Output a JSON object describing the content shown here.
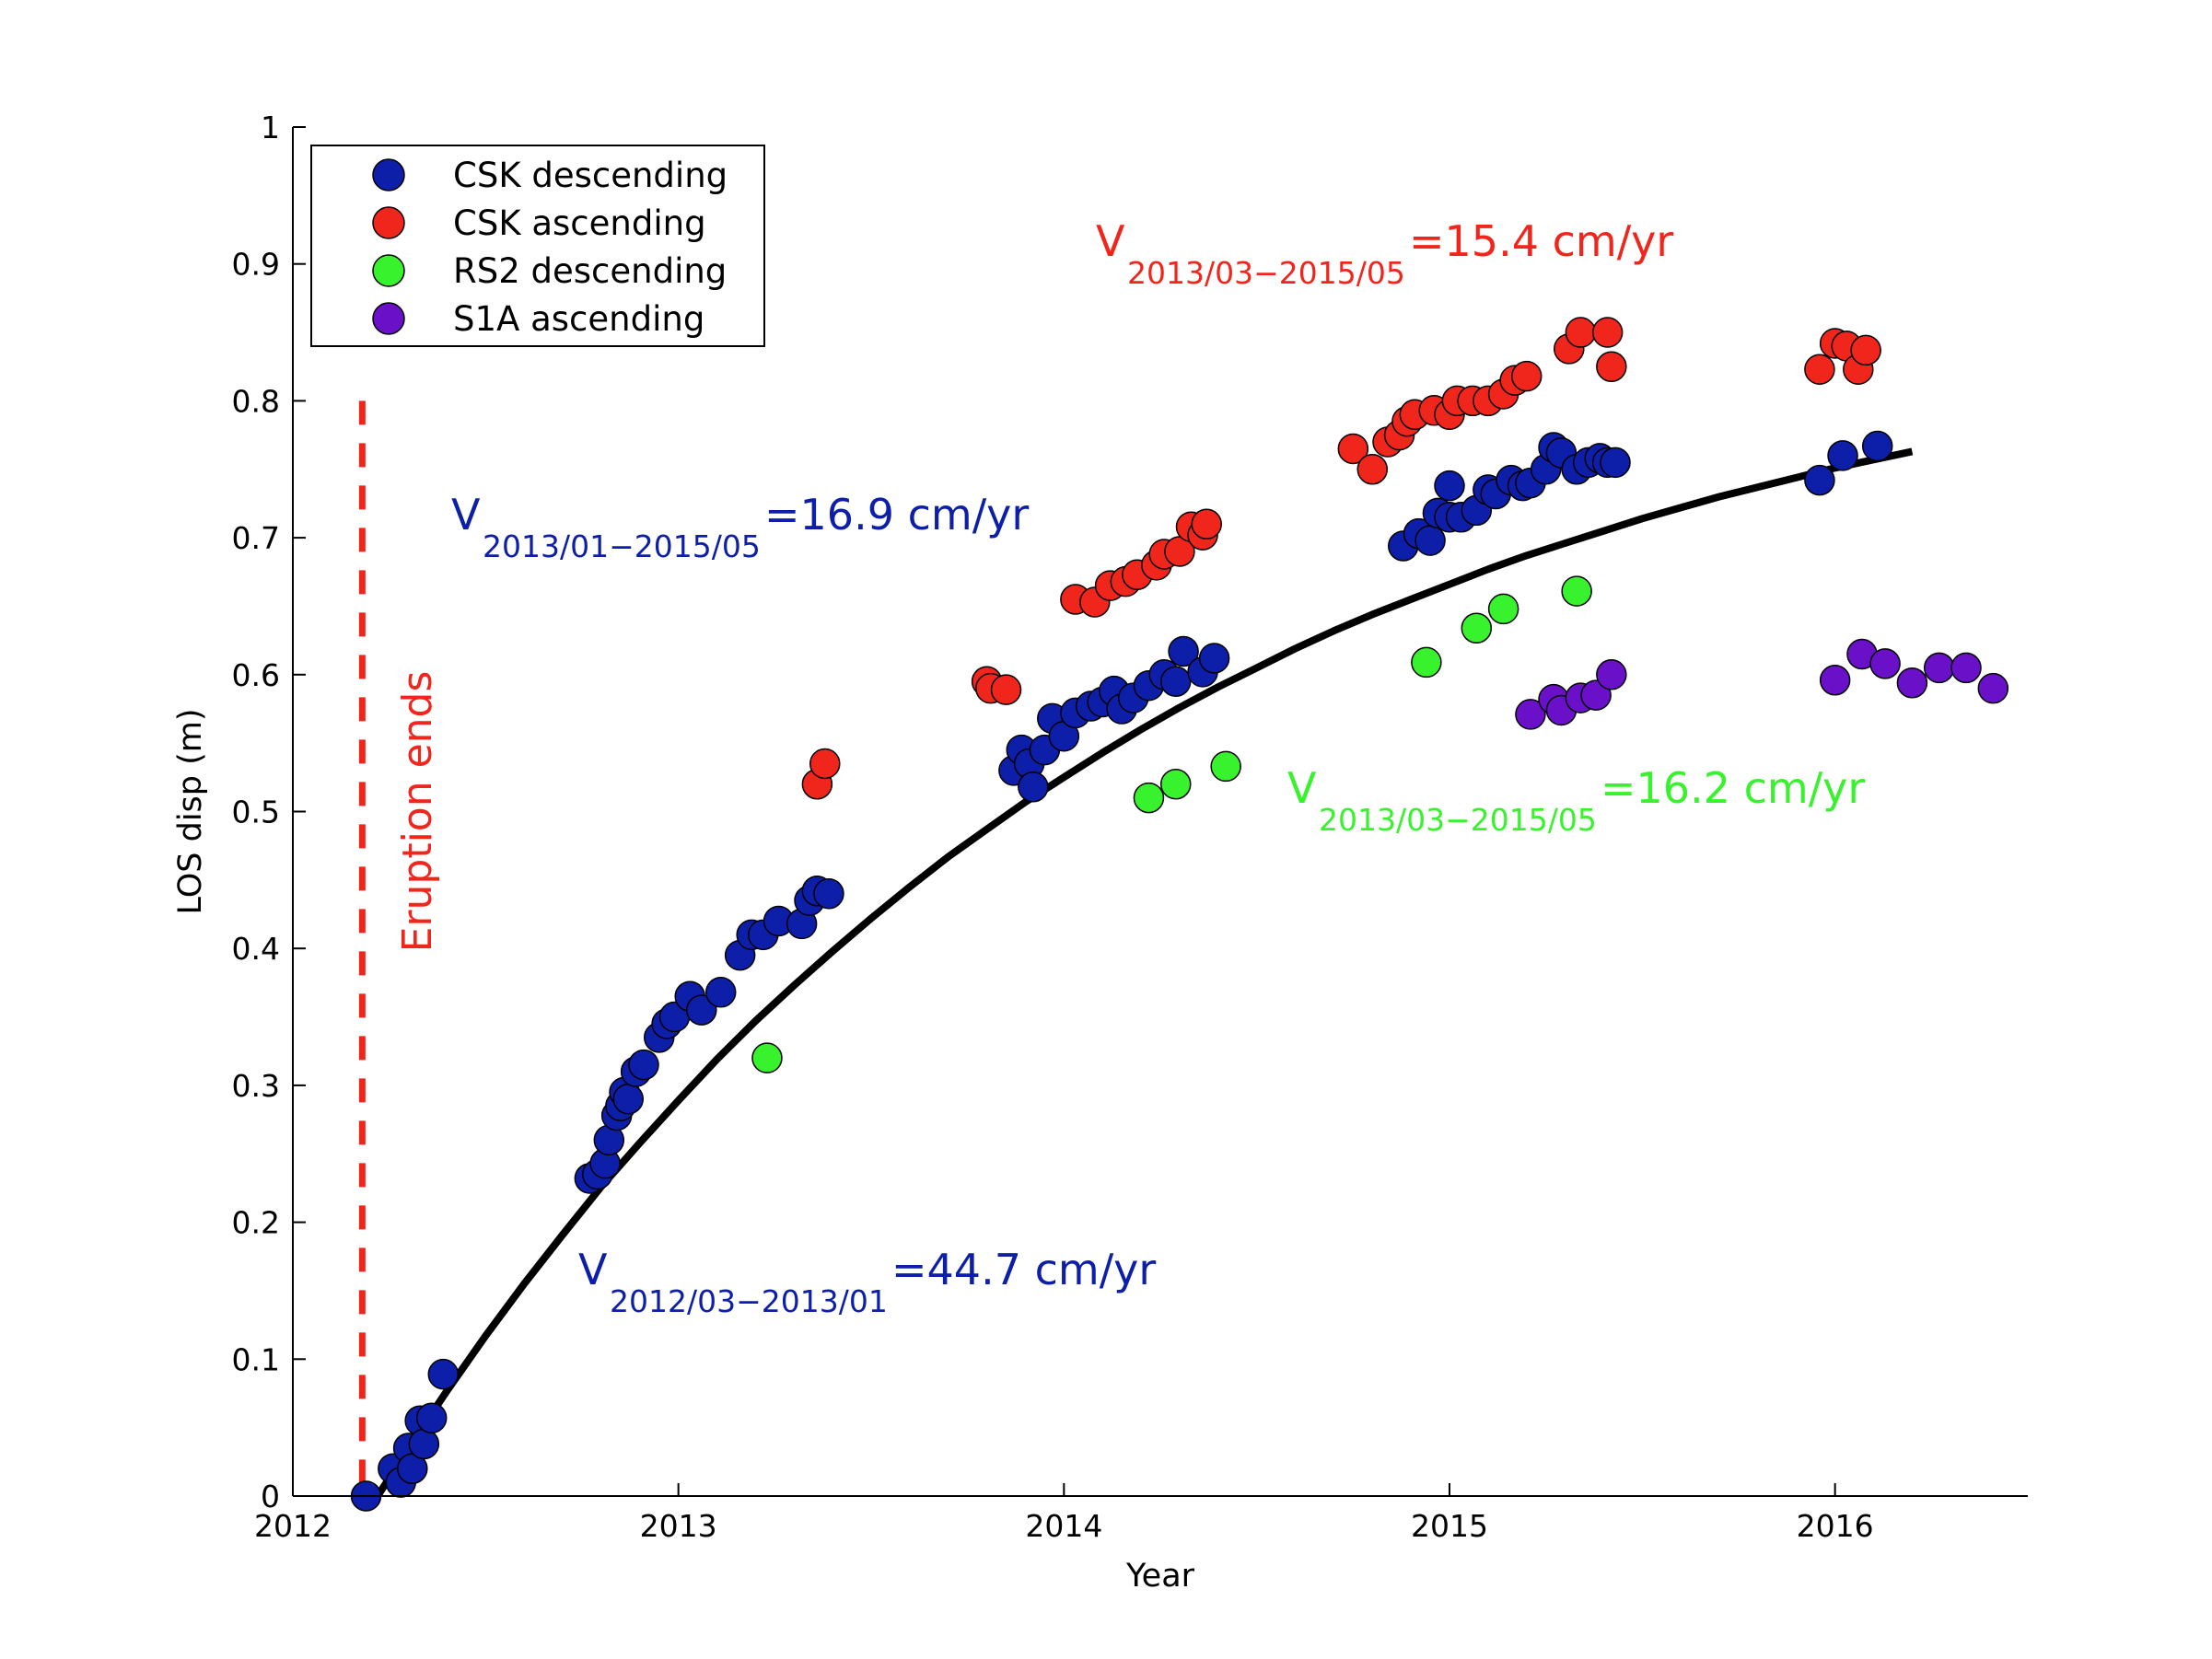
{
  "chart_data": {
    "type": "scatter",
    "xlabel": "Year",
    "ylabel": "LOS disp (m)",
    "xlim": [
      2012,
      2016.5
    ],
    "ylim": [
      0,
      1
    ],
    "xticks": [
      2012,
      2013,
      2014,
      2015,
      2016
    ],
    "xtick_labels": [
      "2012",
      "2013",
      "2014",
      "2015",
      "2016"
    ],
    "yticks": [
      0,
      0.1,
      0.2,
      0.3,
      0.4,
      0.5,
      0.6,
      0.7,
      0.8,
      0.9,
      1
    ],
    "ytick_labels": [
      "0",
      "0.1",
      "0.2",
      "0.3",
      "0.4",
      "0.5",
      "0.6",
      "0.7",
      "0.8",
      "0.9",
      "1"
    ],
    "grid": false,
    "legend_position": "top-left",
    "series": [
      {
        "name": "CSK descending",
        "color": "#0d1fa8",
        "points": [
          [
            2012.19,
            0.0
          ],
          [
            2012.26,
            0.02
          ],
          [
            2012.28,
            0.01
          ],
          [
            2012.3,
            0.035
          ],
          [
            2012.31,
            0.02
          ],
          [
            2012.33,
            0.055
          ],
          [
            2012.34,
            0.038
          ],
          [
            2012.36,
            0.057
          ],
          [
            2012.39,
            0.089
          ],
          [
            2012.77,
            0.232
          ],
          [
            2012.79,
            0.235
          ],
          [
            2012.81,
            0.243
          ],
          [
            2012.82,
            0.26
          ],
          [
            2012.84,
            0.278
          ],
          [
            2012.85,
            0.285
          ],
          [
            2012.86,
            0.295
          ],
          [
            2012.87,
            0.29
          ],
          [
            2012.89,
            0.31
          ],
          [
            2012.91,
            0.315
          ],
          [
            2012.95,
            0.335
          ],
          [
            2012.97,
            0.345
          ],
          [
            2012.99,
            0.35
          ],
          [
            2013.03,
            0.365
          ],
          [
            2013.06,
            0.355
          ],
          [
            2013.11,
            0.368
          ],
          [
            2013.16,
            0.395
          ],
          [
            2013.19,
            0.41
          ],
          [
            2013.22,
            0.41
          ],
          [
            2013.26,
            0.42
          ],
          [
            2013.32,
            0.418
          ],
          [
            2013.34,
            0.435
          ],
          [
            2013.36,
            0.442
          ],
          [
            2013.39,
            0.44
          ],
          [
            2013.87,
            0.53
          ],
          [
            2013.89,
            0.545
          ],
          [
            2013.91,
            0.535
          ],
          [
            2013.92,
            0.518
          ],
          [
            2013.95,
            0.545
          ],
          [
            2013.97,
            0.568
          ],
          [
            2014.0,
            0.555
          ],
          [
            2014.03,
            0.572
          ],
          [
            2014.07,
            0.577
          ],
          [
            2014.1,
            0.58
          ],
          [
            2014.13,
            0.588
          ],
          [
            2014.15,
            0.575
          ],
          [
            2014.18,
            0.583
          ],
          [
            2014.22,
            0.592
          ],
          [
            2014.26,
            0.6
          ],
          [
            2014.29,
            0.595
          ],
          [
            2014.31,
            0.617
          ],
          [
            2014.36,
            0.602
          ],
          [
            2014.39,
            0.612
          ],
          [
            2014.88,
            0.694
          ],
          [
            2014.92,
            0.703
          ],
          [
            2014.95,
            0.698
          ],
          [
            2014.97,
            0.718
          ],
          [
            2015.0,
            0.715
          ],
          [
            2015.0,
            0.738
          ],
          [
            2015.03,
            0.715
          ],
          [
            2015.07,
            0.72
          ],
          [
            2015.1,
            0.735
          ],
          [
            2015.12,
            0.732
          ],
          [
            2015.16,
            0.742
          ],
          [
            2015.19,
            0.738
          ],
          [
            2015.21,
            0.74
          ],
          [
            2015.25,
            0.75
          ],
          [
            2015.27,
            0.766
          ],
          [
            2015.29,
            0.762
          ],
          [
            2015.33,
            0.75
          ],
          [
            2015.36,
            0.755
          ],
          [
            2015.39,
            0.758
          ],
          [
            2015.41,
            0.755
          ],
          [
            2015.43,
            0.755
          ],
          [
            2015.96,
            0.742
          ],
          [
            2016.02,
            0.76
          ],
          [
            2016.11,
            0.767
          ]
        ]
      },
      {
        "name": "CSK ascending",
        "color": "#f0251c",
        "points": [
          [
            2013.36,
            0.52
          ],
          [
            2013.38,
            0.535
          ],
          [
            2013.8,
            0.595
          ],
          [
            2013.81,
            0.59
          ],
          [
            2013.85,
            0.589
          ],
          [
            2014.03,
            0.655
          ],
          [
            2014.08,
            0.653
          ],
          [
            2014.12,
            0.665
          ],
          [
            2014.16,
            0.668
          ],
          [
            2014.19,
            0.673
          ],
          [
            2014.24,
            0.68
          ],
          [
            2014.26,
            0.688
          ],
          [
            2014.3,
            0.69
          ],
          [
            2014.33,
            0.708
          ],
          [
            2014.36,
            0.702
          ],
          [
            2014.37,
            0.71
          ],
          [
            2014.75,
            0.765
          ],
          [
            2014.8,
            0.75
          ],
          [
            2014.84,
            0.77
          ],
          [
            2014.87,
            0.775
          ],
          [
            2014.89,
            0.785
          ],
          [
            2014.91,
            0.79
          ],
          [
            2014.96,
            0.793
          ],
          [
            2015.0,
            0.79
          ],
          [
            2015.02,
            0.8
          ],
          [
            2015.06,
            0.8
          ],
          [
            2015.1,
            0.8
          ],
          [
            2015.14,
            0.805
          ],
          [
            2015.17,
            0.815
          ],
          [
            2015.2,
            0.818
          ],
          [
            2015.31,
            0.838
          ],
          [
            2015.34,
            0.85
          ],
          [
            2015.41,
            0.85
          ],
          [
            2015.42,
            0.825
          ],
          [
            2015.96,
            0.823
          ],
          [
            2016.0,
            0.842
          ],
          [
            2016.03,
            0.84
          ],
          [
            2016.06,
            0.823
          ],
          [
            2016.08,
            0.837
          ]
        ]
      },
      {
        "name": "RS2 descending",
        "color": "#39f22e",
        "points": [
          [
            2013.23,
            0.32
          ],
          [
            2014.22,
            0.51
          ],
          [
            2014.29,
            0.52
          ],
          [
            2014.42,
            0.533
          ],
          [
            2014.94,
            0.609
          ],
          [
            2015.07,
            0.634
          ],
          [
            2015.14,
            0.648
          ],
          [
            2015.33,
            0.661
          ]
        ]
      },
      {
        "name": "S1A ascending",
        "color": "#6a10c8",
        "points": [
          [
            2015.21,
            0.571
          ],
          [
            2015.27,
            0.582
          ],
          [
            2015.29,
            0.574
          ],
          [
            2015.34,
            0.583
          ],
          [
            2015.38,
            0.585
          ],
          [
            2015.42,
            0.6
          ],
          [
            2016.0,
            0.596
          ],
          [
            2016.07,
            0.615
          ],
          [
            2016.13,
            0.608
          ],
          [
            2016.2,
            0.594
          ],
          [
            2016.27,
            0.605
          ],
          [
            2016.34,
            0.605
          ],
          [
            2016.41,
            0.59
          ]
        ]
      }
    ],
    "fit_curve": {
      "color": "#000000",
      "x": [
        2012.22,
        2012.3,
        2012.4,
        2012.5,
        2012.6,
        2012.7,
        2012.8,
        2012.9,
        2013.0,
        2013.1,
        2013.2,
        2013.3,
        2013.4,
        2013.5,
        2013.6,
        2013.7,
        2013.8,
        2013.9,
        2014.0,
        2014.1,
        2014.2,
        2014.3,
        2014.4,
        2014.5,
        2014.6,
        2014.7,
        2014.8,
        2014.9,
        2015.0,
        2015.1,
        2015.2,
        2015.3,
        2015.4,
        2015.5,
        2015.6,
        2015.7,
        2015.8,
        2015.9,
        2016.0,
        2016.1,
        2016.2
      ],
      "y": [
        0.0,
        0.035,
        0.077,
        0.117,
        0.155,
        0.191,
        0.226,
        0.258,
        0.289,
        0.319,
        0.347,
        0.373,
        0.398,
        0.422,
        0.445,
        0.467,
        0.487,
        0.507,
        0.525,
        0.543,
        0.56,
        0.576,
        0.591,
        0.605,
        0.619,
        0.632,
        0.644,
        0.655,
        0.666,
        0.677,
        0.687,
        0.696,
        0.705,
        0.714,
        0.722,
        0.73,
        0.737,
        0.744,
        0.751,
        0.757,
        0.763
      ]
    },
    "eruption_line": {
      "x": 2012.18,
      "label": "Eruption ends",
      "color": "#f0251c"
    },
    "annotations": [
      {
        "main": "V",
        "sub": "2013/03−2015/05",
        "value": "=15.4 cm/yr",
        "color": "#f0251c"
      },
      {
        "main": "V",
        "sub": "2013/01−2015/05",
        "value": "=16.9 cm/yr",
        "color": "#0d1fa8"
      },
      {
        "main": "V",
        "sub": "2013/03−2015/05",
        "value": "=16.2 cm/yr",
        "color": "#39f22e"
      },
      {
        "main": "V",
        "sub": "2012/03−2013/01",
        "value": "=44.7 cm/yr",
        "color": "#0d1fa8"
      }
    ]
  }
}
